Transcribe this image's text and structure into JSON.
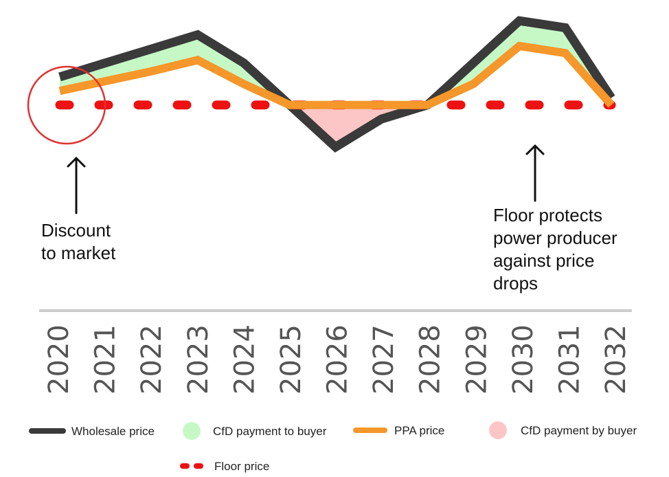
{
  "chart_data": {
    "type": "line",
    "categories": [
      "2020",
      "2021",
      "2022",
      "2023",
      "2024",
      "2025",
      "2026",
      "2027",
      "2028",
      "2029",
      "2030",
      "2031",
      "2032"
    ],
    "series": [
      {
        "name": "Wholesale price",
        "values": [
          75,
          85,
          95,
          105,
          85,
          55,
          25,
          45,
          55,
          85,
          115,
          110,
          60
        ],
        "color": "#3a3a3a"
      },
      {
        "name": "PPA price",
        "values": [
          65,
          72,
          79,
          87,
          70,
          55,
          55,
          55,
          55,
          70,
          97,
          92,
          55
        ],
        "color": "#f5972a"
      },
      {
        "name": "Floor price",
        "values": [
          55,
          55,
          55,
          55,
          55,
          55,
          55,
          55,
          55,
          55,
          55,
          55,
          55
        ],
        "color": "#ee1111"
      }
    ],
    "fills": [
      {
        "name": "CfD payment to buyer",
        "color": "#c6f8c6"
      },
      {
        "name": "CfD payment by buyer",
        "color": "#fdc6c6"
      }
    ],
    "ylim": [
      0,
      120
    ],
    "grid": false,
    "legend": "bottom",
    "annotations": [
      {
        "lines": [
          "Discount",
          "to market"
        ],
        "target": "2020"
      },
      {
        "lines": [
          "Floor protects",
          "power producer",
          "against price",
          "drops"
        ],
        "target": "2030"
      }
    ]
  }
}
